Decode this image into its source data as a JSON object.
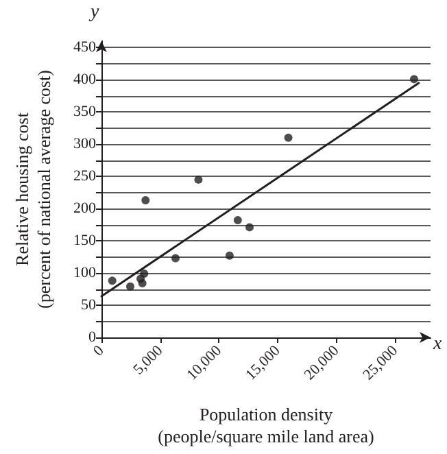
{
  "chart_data": {
    "type": "scatter",
    "xlabel": "Population density\n(people/square mile land area)",
    "ylabel": "Relative housing cost\n(percent of national average cost)",
    "annotations": [
      "y",
      "x"
    ],
    "xlim": [
      0,
      28000
    ],
    "xticks": [
      {
        "value": 0,
        "label": "0"
      },
      {
        "value": 5000,
        "label": "5,000"
      },
      {
        "value": 10000,
        "label": "10,000"
      },
      {
        "value": 15000,
        "label": "15,000"
      },
      {
        "value": 20000,
        "label": "20,000"
      },
      {
        "value": 25000,
        "label": "25,000"
      }
    ],
    "ylim": [
      0,
      460
    ],
    "yticks": [
      0,
      {
        "value": 25,
        "label": null
      },
      50,
      {
        "value": 75,
        "label": null
      },
      100,
      {
        "value": 125,
        "label": null
      },
      150,
      {
        "value": 175,
        "label": null
      },
      200,
      {
        "value": 225,
        "label": null
      },
      250,
      {
        "value": 275,
        "label": null
      },
      300,
      {
        "value": 325,
        "label": null
      },
      350,
      {
        "value": 375,
        "label": null
      },
      400,
      {
        "value": 425,
        "label": null
      },
      450
    ],
    "grid": "y",
    "marker": "circle",
    "series": [
      {
        "color": "#231f20",
        "x": [
          920,
          2450,
          3330,
          3480,
          3630,
          3750,
          6300,
          8250,
          10900,
          11600,
          12600,
          15900,
          26600
        ],
        "values": [
          88,
          79,
          91,
          84,
          99,
          213,
          123,
          245,
          127,
          182,
          171,
          310,
          401
        ]
      },
      {
        "type": "line",
        "color": "#231f20",
        "marker": "none",
        "line_style": "solid",
        "x": [
          0,
          27000
        ],
        "values": [
          64,
          395
        ]
      }
    ]
  }
}
